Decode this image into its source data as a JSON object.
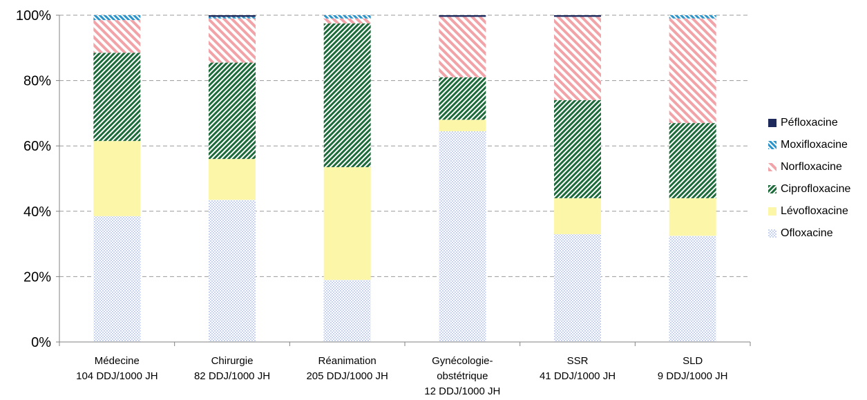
{
  "colors": {
    "pefloxacine": "#1f2a5c",
    "moxifloxacine": "#2a93c9",
    "norfloxacine": "#f2a3a8",
    "ciprofloxacine": "#1d6a3a",
    "levofloxacine": "#fbf6a8",
    "ofloxacine": "#6f8fd6",
    "gridline": "#999999",
    "axis": "#808080"
  },
  "chart_data": {
    "type": "bar",
    "stacked": true,
    "percent": true,
    "ylim": [
      0,
      100
    ],
    "y_ticks": [
      "0%",
      "20%",
      "40%",
      "60%",
      "80%",
      "100%"
    ],
    "categories": [
      [
        "Médecine",
        "104 DDJ/1000 JH"
      ],
      [
        "Chirurgie",
        "82 DDJ/1000 JH"
      ],
      [
        "Réanimation",
        "205 DDJ/1000 JH"
      ],
      [
        "Gynécologie-",
        "obstétrique",
        "12 DDJ/1000 JH"
      ],
      [
        "SSR",
        "41 DDJ/1000 JH"
      ],
      [
        "SLD",
        "9 DDJ/1000 JH"
      ]
    ],
    "grid": true,
    "legend_position": "right",
    "series": [
      {
        "name": "Ofloxacine",
        "key": "ofloxacine",
        "values": [
          38.5,
          43.5,
          19,
          64.5,
          33,
          32.5
        ]
      },
      {
        "name": "Lévofloxacine",
        "key": "levofloxacine",
        "values": [
          23,
          12.5,
          34.5,
          3.5,
          11,
          11.5
        ]
      },
      {
        "name": "Ciprofloxacine",
        "key": "ciprofloxacine",
        "values": [
          27,
          29.5,
          44,
          13,
          30,
          23
        ]
      },
      {
        "name": "Norfloxacine",
        "key": "norfloxacine",
        "values": [
          10,
          13.5,
          1.5,
          18.5,
          25.5,
          32
        ]
      },
      {
        "name": "Moxifloxacine",
        "key": "moxifloxacine",
        "values": [
          1.5,
          0.5,
          1,
          0,
          0,
          1
        ]
      },
      {
        "name": "Péfloxacine",
        "key": "pefloxacine",
        "values": [
          0,
          0.5,
          0,
          0.5,
          0.5,
          0
        ]
      }
    ]
  }
}
